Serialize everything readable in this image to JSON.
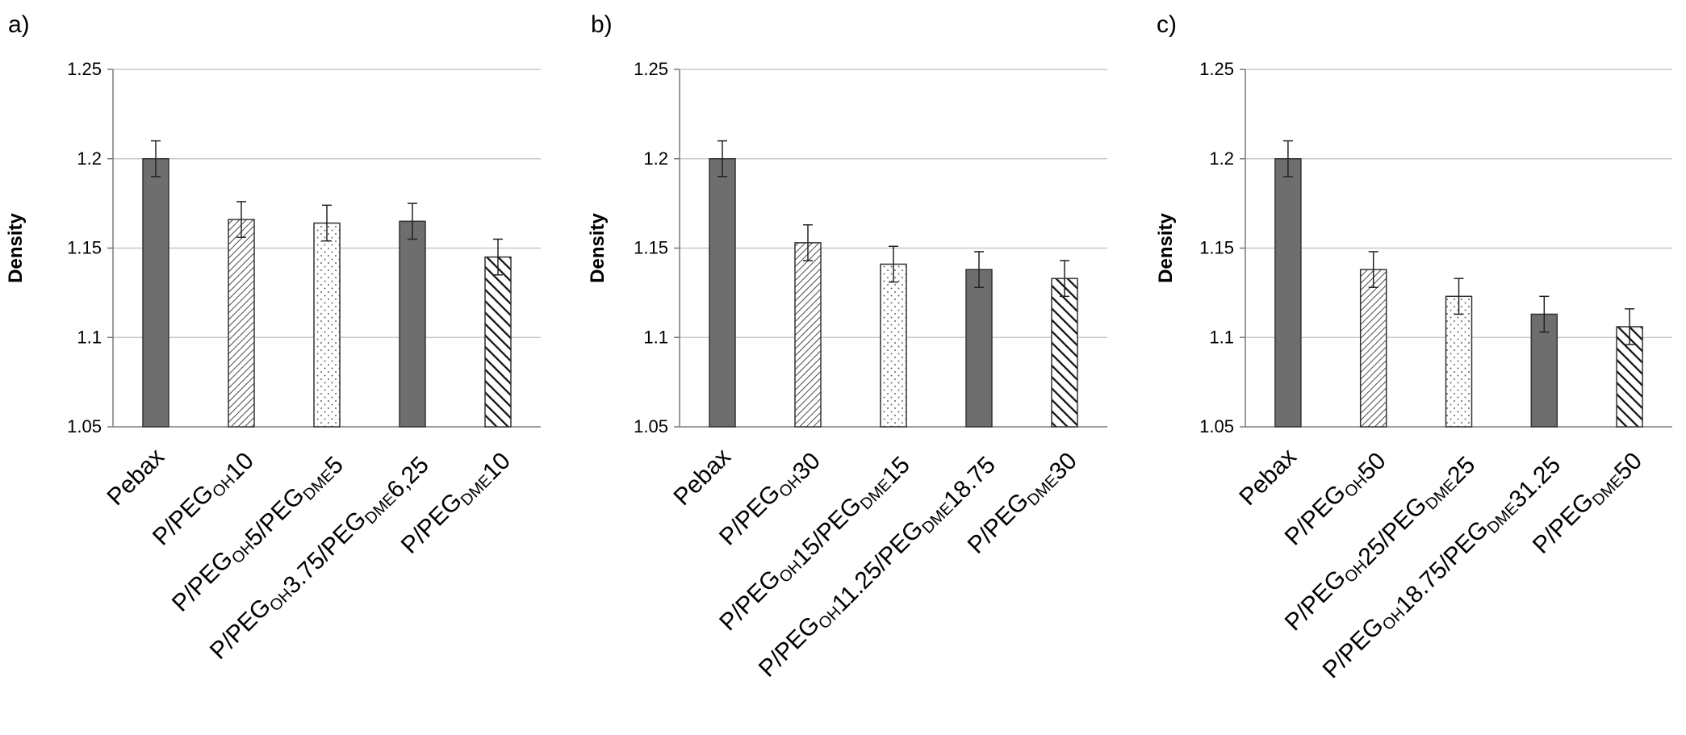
{
  "chart_data": [
    {
      "panel": "a)",
      "type": "bar",
      "ylabel": "Density",
      "ylim": [
        1.05,
        1.25
      ],
      "yticks": [
        "1.05",
        "1.1",
        "1.15",
        "1.2",
        "1.25"
      ],
      "grid": true,
      "categories": [
        {
          "parts": [
            {
              "t": "Pebax"
            }
          ]
        },
        {
          "parts": [
            {
              "t": "P/PEG"
            },
            {
              "t": "OH",
              "sub": true
            },
            {
              "t": "10"
            }
          ]
        },
        {
          "parts": [
            {
              "t": "P/PEG"
            },
            {
              "t": "OH",
              "sub": true
            },
            {
              "t": "5/PEG"
            },
            {
              "t": "DME",
              "sub": true
            },
            {
              "t": "5"
            }
          ]
        },
        {
          "parts": [
            {
              "t": "P/PEG"
            },
            {
              "t": "OH",
              "sub": true
            },
            {
              "t": "3.75/PEG"
            },
            {
              "t": "DME",
              "sub": true
            },
            {
              "t": "6,25"
            }
          ]
        },
        {
          "parts": [
            {
              "t": "P/PEG"
            },
            {
              "t": "DME",
              "sub": true
            },
            {
              "t": "10"
            }
          ]
        }
      ],
      "values": [
        1.2,
        1.166,
        1.164,
        1.165,
        1.145
      ],
      "errors": [
        0.01,
        0.01,
        0.01,
        0.01,
        0.01
      ],
      "patterns": [
        "solid",
        "fine-hatch",
        "dots",
        "solid",
        "bold-hatch"
      ]
    },
    {
      "panel": "b)",
      "type": "bar",
      "ylabel": "Density",
      "ylim": [
        1.05,
        1.25
      ],
      "yticks": [
        "1.05",
        "1.1",
        "1.15",
        "1.2",
        "1.25"
      ],
      "grid": true,
      "categories": [
        {
          "parts": [
            {
              "t": "Pebax"
            }
          ]
        },
        {
          "parts": [
            {
              "t": "P/PEG"
            },
            {
              "t": "OH",
              "sub": true
            },
            {
              "t": "30"
            }
          ]
        },
        {
          "parts": [
            {
              "t": "P/PEG"
            },
            {
              "t": "OH",
              "sub": true
            },
            {
              "t": "15/PEG"
            },
            {
              "t": "DME",
              "sub": true
            },
            {
              "t": "15"
            }
          ]
        },
        {
          "parts": [
            {
              "t": "P/PEG"
            },
            {
              "t": "OH",
              "sub": true
            },
            {
              "t": "11.25/PEG"
            },
            {
              "t": "DME",
              "sub": true
            },
            {
              "t": "18.75"
            }
          ]
        },
        {
          "parts": [
            {
              "t": "P/PEG"
            },
            {
              "t": "DME",
              "sub": true
            },
            {
              "t": "30"
            }
          ]
        }
      ],
      "values": [
        1.2,
        1.153,
        1.141,
        1.138,
        1.133
      ],
      "errors": [
        0.01,
        0.01,
        0.01,
        0.01,
        0.01
      ],
      "patterns": [
        "solid",
        "fine-hatch",
        "dots",
        "solid",
        "bold-hatch"
      ]
    },
    {
      "panel": "c)",
      "type": "bar",
      "ylabel": "Density",
      "ylim": [
        1.05,
        1.25
      ],
      "yticks": [
        "1.05",
        "1.1",
        "1.15",
        "1.2",
        "1.25"
      ],
      "grid": true,
      "categories": [
        {
          "parts": [
            {
              "t": "Pebax"
            }
          ]
        },
        {
          "parts": [
            {
              "t": "P/PEG"
            },
            {
              "t": "OH",
              "sub": true
            },
            {
              "t": "50"
            }
          ]
        },
        {
          "parts": [
            {
              "t": "P/PEG"
            },
            {
              "t": "OH",
              "sub": true
            },
            {
              "t": "25/PEG"
            },
            {
              "t": "DME",
              "sub": true
            },
            {
              "t": "25"
            }
          ]
        },
        {
          "parts": [
            {
              "t": "P/PEG"
            },
            {
              "t": "OH",
              "sub": true
            },
            {
              "t": "18.75/PEG"
            },
            {
              "t": "DME",
              "sub": true
            },
            {
              "t": "31.25"
            }
          ]
        },
        {
          "parts": [
            {
              "t": "P/PEG"
            },
            {
              "t": "DME",
              "sub": true
            },
            {
              "t": "50"
            }
          ]
        }
      ],
      "values": [
        1.2,
        1.138,
        1.123,
        1.113,
        1.106
      ],
      "errors": [
        0.01,
        0.01,
        0.01,
        0.01,
        0.01
      ],
      "patterns": [
        "solid",
        "fine-hatch",
        "dots",
        "solid",
        "bold-hatch"
      ]
    }
  ],
  "colors": {
    "solid_fill": "#6e6e6e",
    "bar_stroke": "#333333",
    "grid": "#c8c8c8",
    "axis": "#7a7a7a",
    "hatch": "#4a4a4a",
    "dot": "#666666"
  }
}
